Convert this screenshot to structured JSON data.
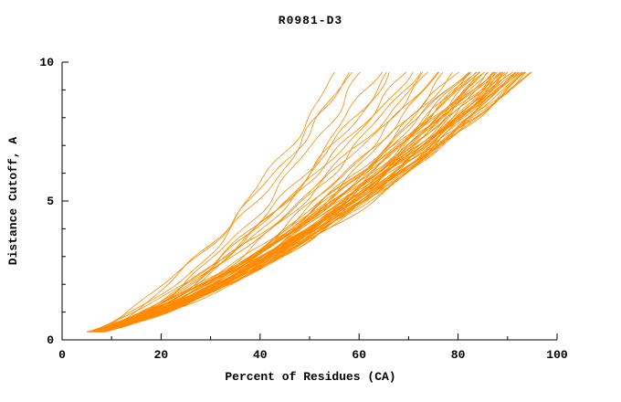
{
  "figure": {
    "background": "#ffffff",
    "axis_color": "#000000"
  },
  "chart_data": {
    "type": "line",
    "title": "R0981-D3",
    "xlabel": "Percent of Residues (CA)",
    "ylabel": "Distance Cutoff, A",
    "xlim": [
      0,
      100
    ],
    "ylim": [
      0,
      10
    ],
    "x_ticks": [
      0,
      20,
      40,
      60,
      80,
      100
    ],
    "y_ticks": [
      0,
      5,
      10
    ],
    "x_minor_ticks": [
      10,
      30,
      50,
      70,
      90
    ],
    "y_minor_ticks": [
      1,
      2,
      3,
      4,
      6,
      7,
      8,
      9
    ],
    "grid": false,
    "legend": "none",
    "series_color": "#ff8a00",
    "curve_y_start": 0.28,
    "curve_y_end": 9.72,
    "curve_format": [
      "x_start_percent",
      "x_end_percent",
      "shape_exponent"
    ],
    "curves": [
      [
        7.0,
        56,
        0.62
      ],
      [
        6.0,
        58,
        0.55
      ],
      [
        8.0,
        61,
        0.58
      ],
      [
        6.5,
        64,
        0.52
      ],
      [
        7.5,
        67,
        0.6
      ],
      [
        5.5,
        59,
        0.65
      ],
      [
        8.5,
        66,
        0.57
      ],
      [
        6.0,
        70,
        0.6
      ],
      [
        7.0,
        72,
        0.55
      ],
      [
        5.0,
        74,
        0.62
      ],
      [
        8.0,
        76,
        0.58
      ],
      [
        6.5,
        78,
        0.54
      ],
      [
        7.5,
        80,
        0.6
      ],
      [
        5.5,
        71,
        0.66
      ],
      [
        6.0,
        77,
        0.57
      ],
      [
        8.5,
        79,
        0.52
      ],
      [
        7.0,
        75,
        0.64
      ],
      [
        5.0,
        82,
        0.62
      ],
      [
        6.0,
        83,
        0.58
      ],
      [
        7.0,
        84,
        0.66
      ],
      [
        5.5,
        85,
        0.6
      ],
      [
        6.5,
        86,
        0.55
      ],
      [
        7.5,
        87,
        0.63
      ],
      [
        8.0,
        88,
        0.58
      ],
      [
        5.0,
        89,
        0.68
      ],
      [
        6.0,
        90,
        0.6
      ],
      [
        7.0,
        91,
        0.56
      ],
      [
        5.5,
        92,
        0.64
      ],
      [
        6.5,
        93,
        0.59
      ],
      [
        7.5,
        94,
        0.62
      ],
      [
        8.0,
        95,
        0.66
      ],
      [
        5.0,
        84,
        0.57
      ],
      [
        6.0,
        86,
        0.65
      ],
      [
        7.0,
        88,
        0.6
      ],
      [
        5.5,
        90,
        0.55
      ],
      [
        6.5,
        92,
        0.68
      ],
      [
        7.5,
        85,
        0.58
      ],
      [
        8.0,
        87,
        0.62
      ],
      [
        5.0,
        89,
        0.56
      ],
      [
        6.0,
        91,
        0.64
      ],
      [
        7.0,
        93,
        0.59
      ],
      [
        5.5,
        95,
        0.67
      ],
      [
        6.5,
        83,
        0.61
      ],
      [
        7.5,
        86,
        0.57
      ],
      [
        8.0,
        90,
        0.65
      ],
      [
        5.0,
        92,
        0.6
      ],
      [
        6.0,
        94,
        0.56
      ],
      [
        7.0,
        82,
        0.63
      ],
      [
        5.5,
        88,
        0.59
      ],
      [
        6.5,
        91,
        0.66
      ],
      [
        7.5,
        93,
        0.61
      ],
      [
        8.0,
        85,
        0.57
      ],
      [
        5.0,
        87,
        0.64
      ],
      [
        6.0,
        89,
        0.6
      ],
      [
        7.0,
        92,
        0.67
      ],
      [
        5.5,
        94,
        0.58
      ],
      [
        6.5,
        84,
        0.62
      ],
      [
        7.5,
        90,
        0.59
      ],
      [
        8.0,
        93,
        0.64
      ],
      [
        5.0,
        95,
        0.61
      ]
    ]
  }
}
